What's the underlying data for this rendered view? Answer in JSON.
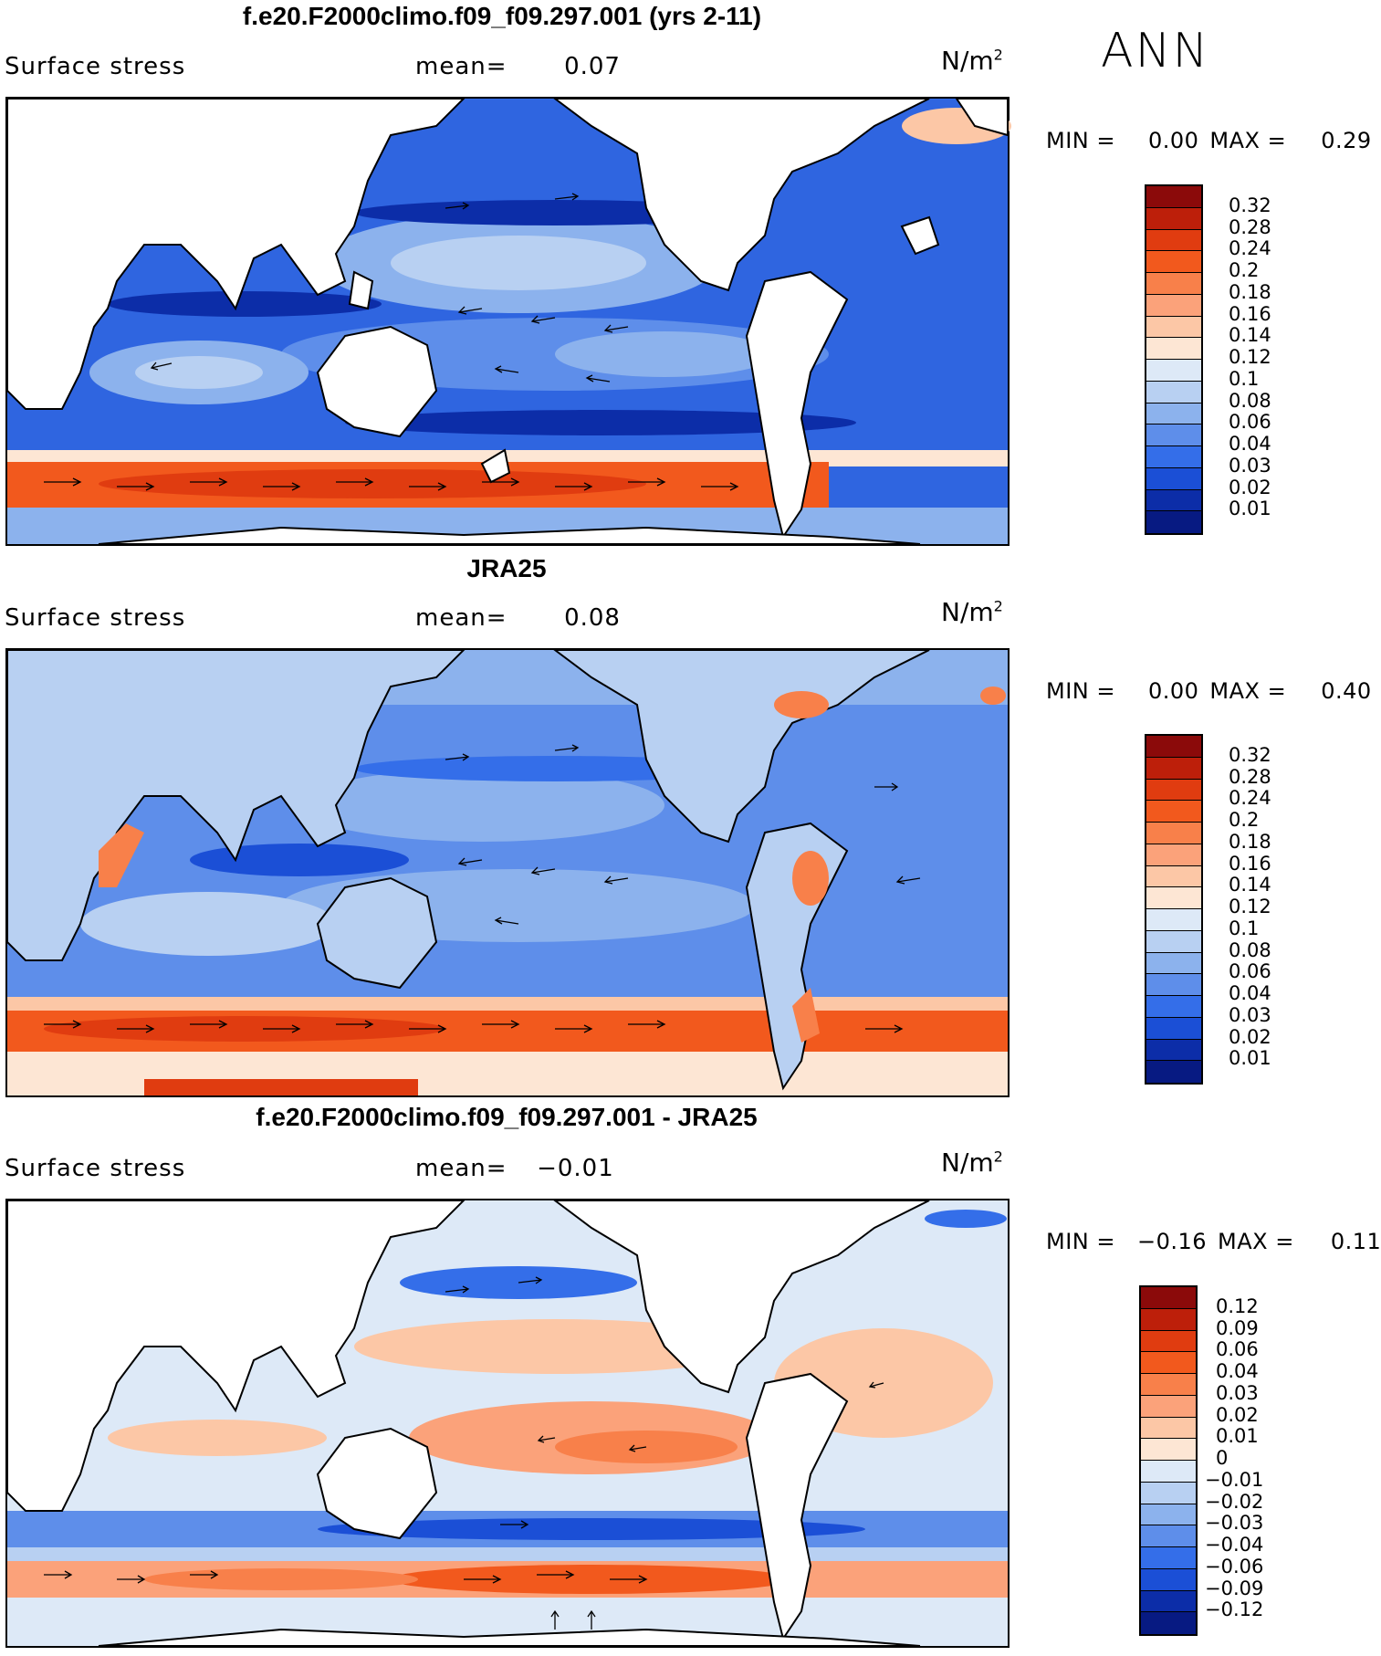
{
  "season": "ANN",
  "field_label": "Surface stress",
  "units": "N/m",
  "units_sup": "2",
  "mean_label": "mean=",
  "min_label": "MIN =",
  "max_label": "MAX =",
  "panels": [
    {
      "title": "f.e20.F2000climo.f09_f09.297.001 (yrs 2-11)",
      "mean": "0.07",
      "min": "0.00",
      "max": "0.29",
      "levels": [
        "0.32",
        "0.28",
        "0.24",
        "0.2",
        "0.18",
        "0.16",
        "0.14",
        "0.12",
        "0.1",
        "0.08",
        "0.06",
        "0.04",
        "0.03",
        "0.02",
        "0.01"
      ],
      "colors": [
        "#8b0a0a",
        "#bd1f0a",
        "#e03c10",
        "#f2591d",
        "#f8804a",
        "#fba27a",
        "#fcc7a6",
        "#fde6d4",
        "#dde9f7",
        "#b8d0f2",
        "#8cb2ed",
        "#5e8eea",
        "#346ee9",
        "#1b4fd6",
        "#0c2da8",
        "#071a82"
      ]
    },
    {
      "title": "JRA25",
      "mean": "0.08",
      "min": "0.00",
      "max": "0.40",
      "levels": [
        "0.32",
        "0.28",
        "0.24",
        "0.2",
        "0.18",
        "0.16",
        "0.14",
        "0.12",
        "0.1",
        "0.08",
        "0.06",
        "0.04",
        "0.03",
        "0.02",
        "0.01"
      ],
      "colors": [
        "#8b0a0a",
        "#bd1f0a",
        "#e03c10",
        "#f2591d",
        "#f8804a",
        "#fba27a",
        "#fcc7a6",
        "#fde6d4",
        "#dde9f7",
        "#b8d0f2",
        "#8cb2ed",
        "#5e8eea",
        "#346ee9",
        "#1b4fd6",
        "#0c2da8",
        "#071a82"
      ]
    },
    {
      "title": "f.e20.F2000climo.f09_f09.297.001 - JRA25",
      "mean": "−0.01",
      "min": "−0.16",
      "max": "0.11",
      "levels": [
        "0.12",
        "0.09",
        "0.06",
        "0.04",
        "0.03",
        "0.02",
        "0.01",
        "0",
        "−0.01",
        "−0.02",
        "−0.03",
        "−0.04",
        "−0.06",
        "−0.09",
        "−0.12"
      ],
      "colors": [
        "#8b0a0a",
        "#bd1f0a",
        "#e03c10",
        "#f2591d",
        "#f8804a",
        "#fba27a",
        "#fcc7a6",
        "#fde6d4",
        "#dde9f7",
        "#b8d0f2",
        "#8cb2ed",
        "#5e8eea",
        "#346ee9",
        "#1b4fd6",
        "#0c2da8",
        "#071a82"
      ]
    }
  ]
}
